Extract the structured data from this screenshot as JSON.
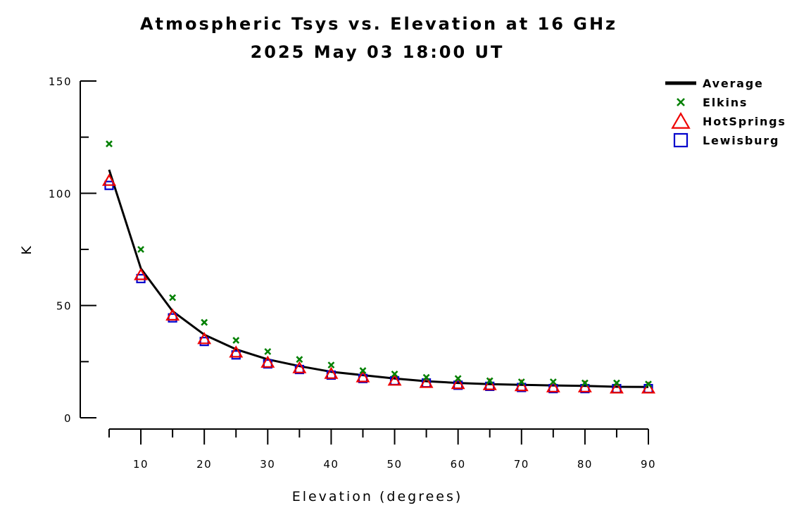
{
  "chart_data": {
    "type": "line",
    "title": "Atmospheric Tsys vs. Elevation at 16 GHz",
    "subtitle": "2025 May 03 18:00 UT",
    "xlabel": "Elevation (degrees)",
    "ylabel": "K",
    "xlim": [
      5,
      90
    ],
    "ylim": [
      0,
      150
    ],
    "xticks": [
      10,
      20,
      30,
      40,
      50,
      60,
      70,
      80,
      90
    ],
    "yticks": [
      0,
      50,
      100,
      150
    ],
    "legend_position": "top-right",
    "x": [
      5,
      10,
      15,
      20,
      25,
      30,
      35,
      40,
      45,
      50,
      55,
      60,
      65,
      70,
      75,
      80,
      85,
      90
    ],
    "series": [
      {
        "name": "Average",
        "marker": "line",
        "color": "#000000",
        "values": [
          110.5,
          66.5,
          47.5,
          37.0,
          30.5,
          26.0,
          23.0,
          20.5,
          19.0,
          17.5,
          16.3,
          15.5,
          15.0,
          14.7,
          14.4,
          14.2,
          13.8,
          13.7
        ]
      },
      {
        "name": "Elkins",
        "marker": "x",
        "color": "#008000",
        "values": [
          122,
          75,
          53.5,
          42.5,
          34.5,
          29.5,
          26,
          23.5,
          21,
          19.5,
          18,
          17.5,
          16.5,
          16,
          16,
          15.5,
          15.5,
          15
        ]
      },
      {
        "name": "HotSprings",
        "marker": "triangle",
        "color": "#ee0000",
        "values": [
          105.5,
          63.5,
          45.5,
          35.0,
          29.0,
          24.5,
          22.0,
          19.5,
          18.0,
          16.5,
          15.5,
          15.0,
          14.5,
          14.0,
          13.5,
          13.5,
          13.0,
          13.0
        ]
      },
      {
        "name": "Lewisburg",
        "marker": "square",
        "color": "#0000cc",
        "values": [
          103.5,
          62.0,
          44.5,
          34.0,
          28.0,
          24.0,
          21.5,
          19.0,
          17.5,
          16.5,
          15.5,
          14.5,
          14.0,
          13.5,
          13.0,
          13.0,
          13.0,
          13.0
        ]
      }
    ]
  }
}
